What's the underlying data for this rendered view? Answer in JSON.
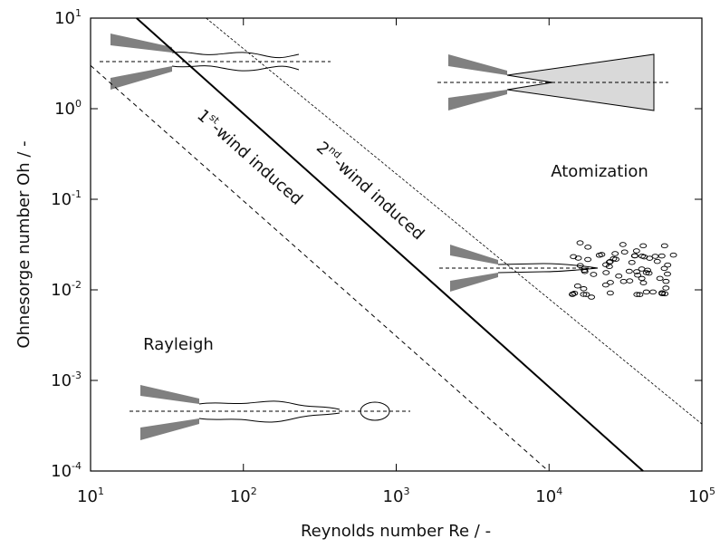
{
  "chart_data": {
    "type": "line",
    "x_label": "Reynolds number Re / -",
    "y_label": "Ohnesorge number Oh / -",
    "xlog": true,
    "ylog": true,
    "xlim": [
      10,
      100000
    ],
    "ylim": [
      0.0001,
      10
    ],
    "xticks": [
      {
        "value": 10,
        "label": "10^1"
      },
      {
        "value": 100,
        "label": "10^2"
      },
      {
        "value": 1000,
        "label": "10^3"
      },
      {
        "value": 10000,
        "label": "10^4"
      },
      {
        "value": 100000,
        "label": "10^5"
      }
    ],
    "yticks": [
      {
        "value": 0.0001,
        "label": "10^-4"
      },
      {
        "value": 0.001,
        "label": "10^-3"
      },
      {
        "value": 0.01,
        "label": "10^-2"
      },
      {
        "value": 0.1,
        "label": "10^-1"
      },
      {
        "value": 1,
        "label": "10^0"
      },
      {
        "value": 10,
        "label": "10^1"
      }
    ],
    "series": [
      {
        "style": "dashed",
        "color": "#000000",
        "x": [
          10,
          9900
        ],
        "values": [
          3.0,
          0.0001
        ]
      },
      {
        "style": "solid",
        "color": "#000000",
        "x": [
          20,
          41200
        ],
        "values": [
          10,
          0.0001
        ]
      },
      {
        "style": "dotted",
        "color": "#000000",
        "x": [
          57,
          100000
        ],
        "values": [
          10,
          0.00033
        ]
      }
    ],
    "annotations": [
      {
        "parts": [
          "1",
          "st",
          "-wind induced"
        ]
      },
      {
        "parts": [
          "2",
          "nd",
          "-wind induced"
        ]
      },
      {
        "parts": [
          "Atomization"
        ]
      },
      {
        "parts": [
          "Rayleigh"
        ]
      }
    ]
  }
}
